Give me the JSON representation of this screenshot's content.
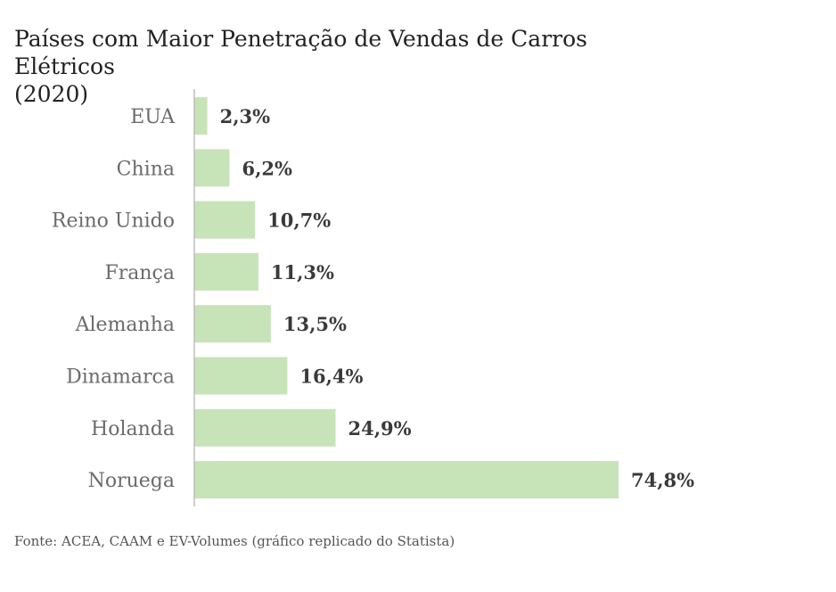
{
  "chart_data": {
    "type": "bar",
    "orientation": "horizontal",
    "title_line1": "Países com Maior Penetração de Vendas de Carros Elétricos",
    "title_line2": "(2020)",
    "categories": [
      "EUA",
      "China",
      "Reino Unido",
      "França",
      "Alemanha",
      "Dinamarca",
      "Holanda",
      "Noruega"
    ],
    "values": [
      2.3,
      6.2,
      10.7,
      11.3,
      13.5,
      16.4,
      24.9,
      74.8
    ],
    "value_labels": [
      "2,3%",
      "6,2%",
      "10,7%",
      "11,3%",
      "13,5%",
      "16,4%",
      "24,9%",
      "74,8%"
    ],
    "xlabel": "",
    "ylabel": "",
    "xlim": [
      0,
      74.8
    ],
    "grid": false,
    "bar_color": "#c7e3b8",
    "axis_color": "#bdbdbd",
    "source": "Fonte: ACEA, CAAM e EV-Volumes (gráfico replicado do Statista)"
  }
}
